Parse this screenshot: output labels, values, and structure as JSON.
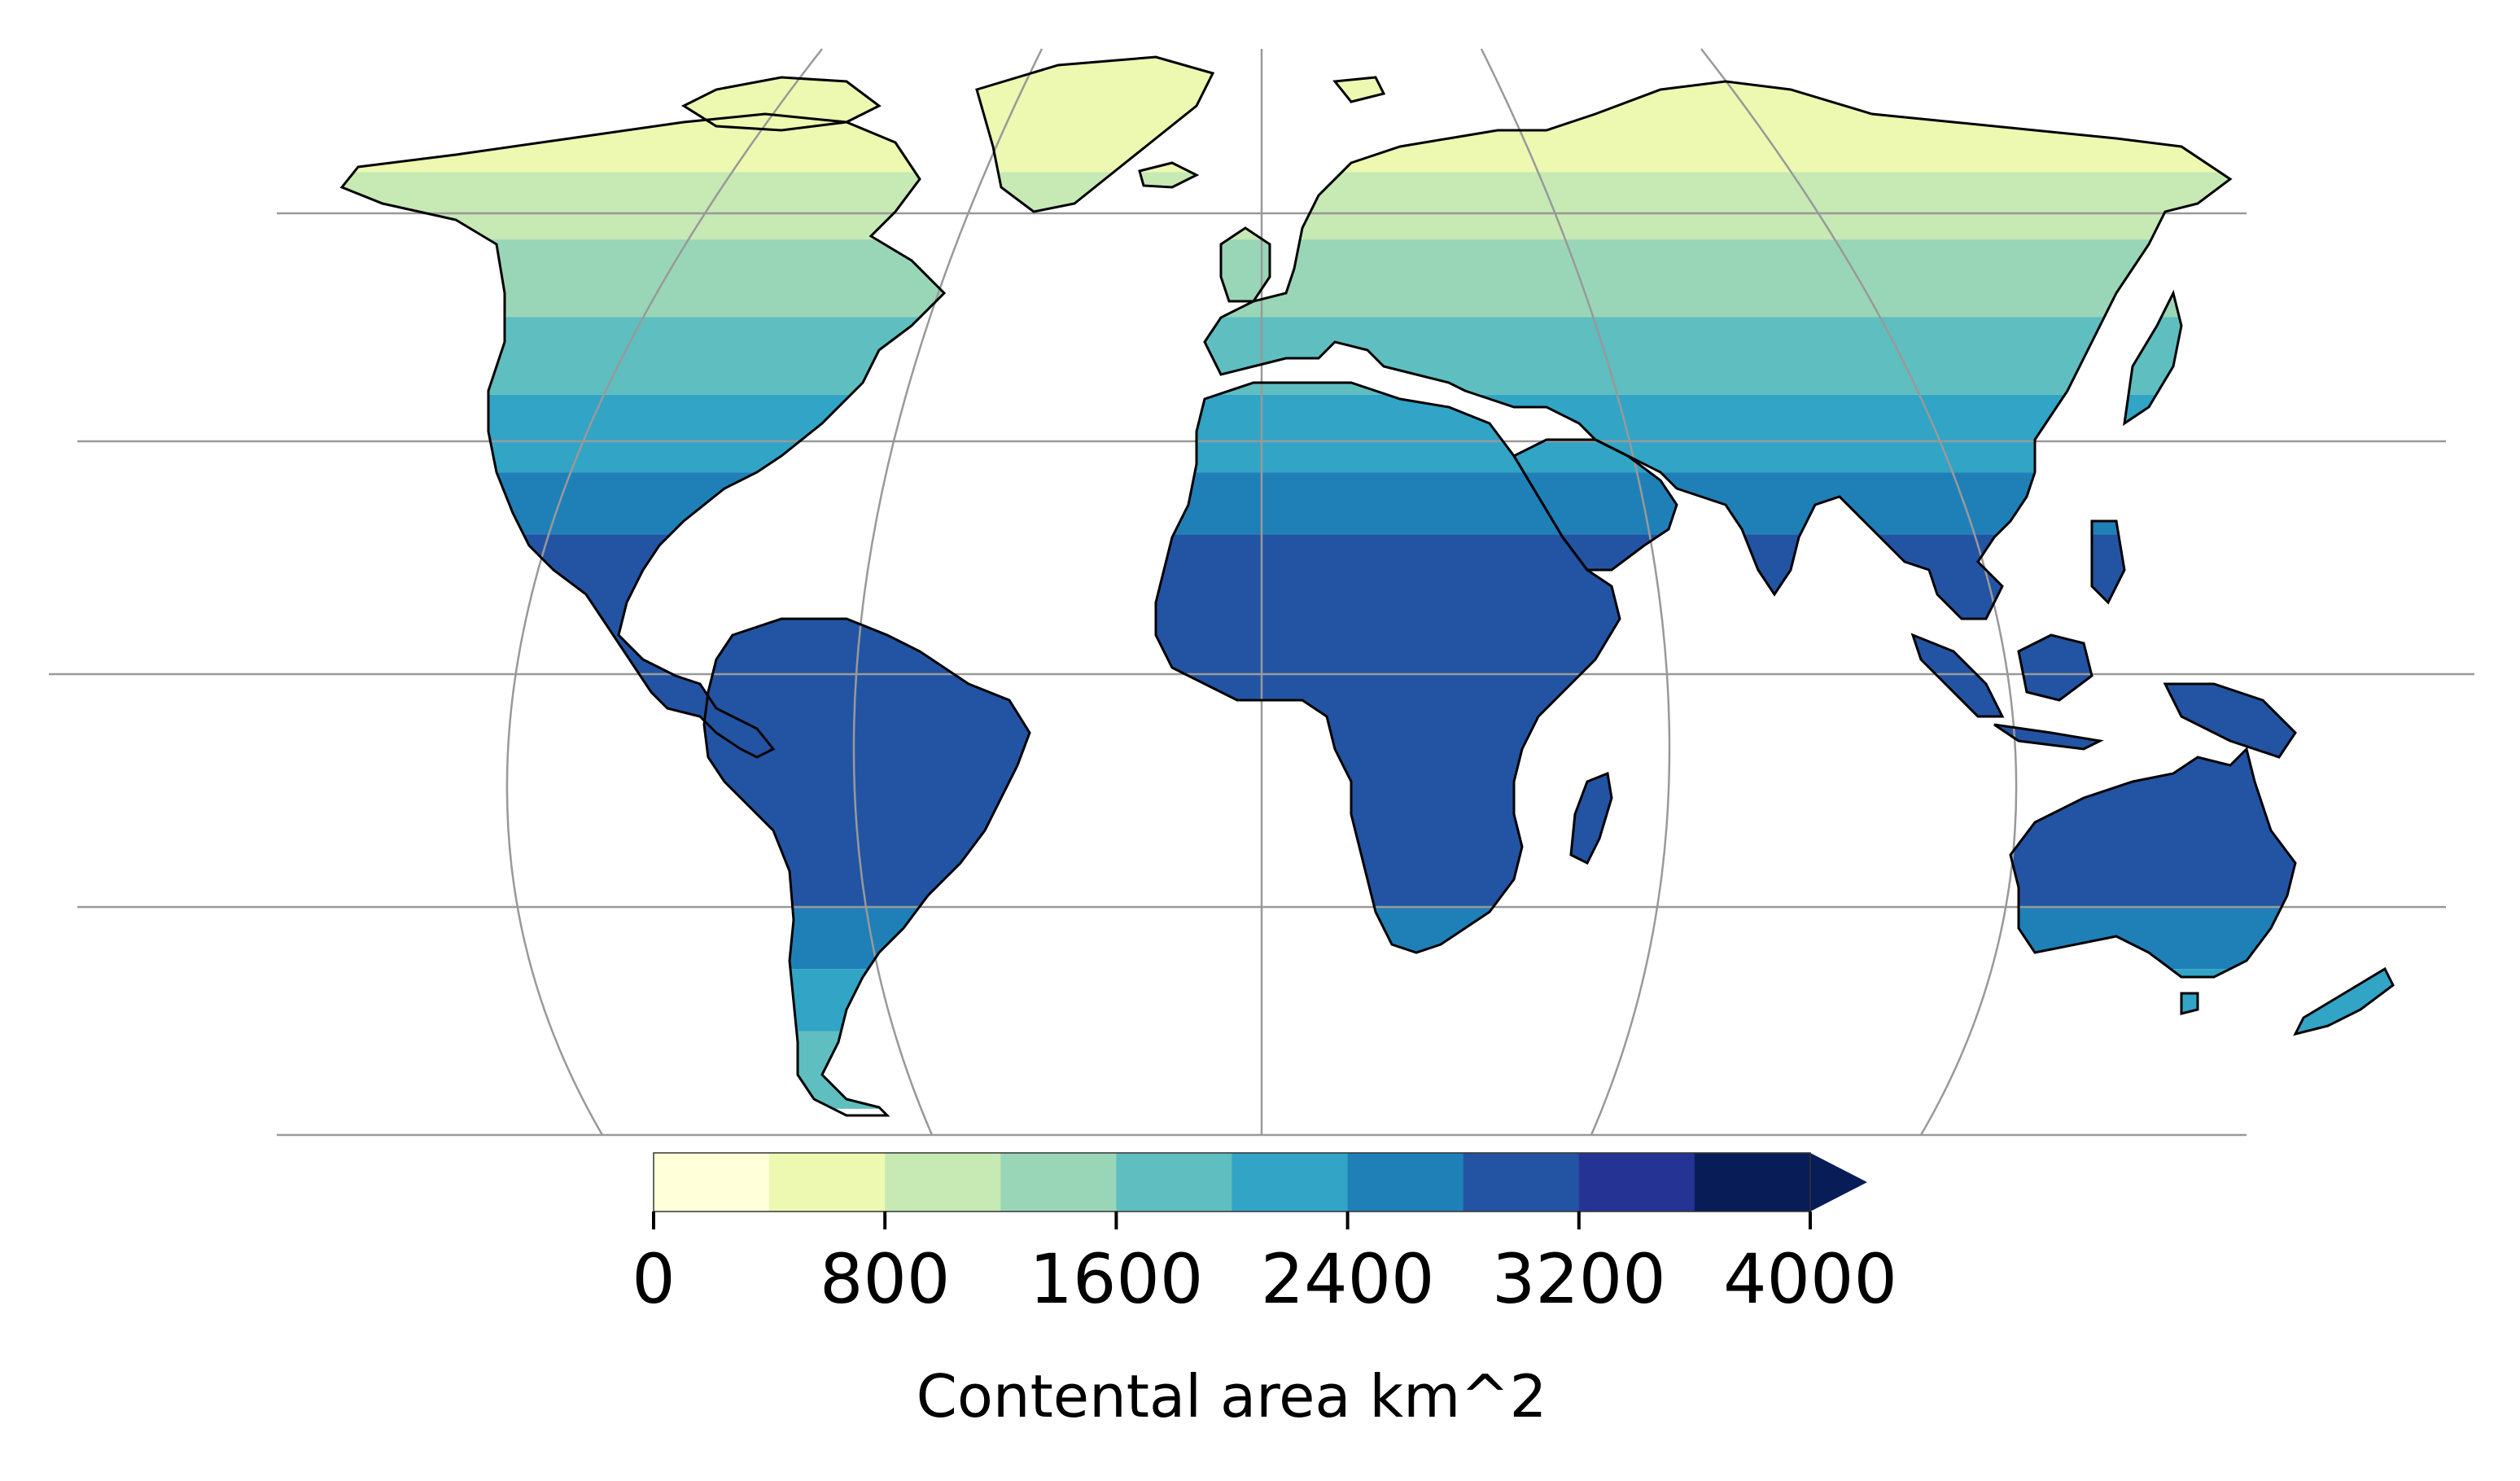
{
  "colorbar": {
    "label": "Contental area km^2",
    "ticks": [
      "0",
      "800",
      "1600",
      "2400",
      "3200",
      "4000"
    ],
    "bins": [
      "#ffffd9",
      "#edf8b1",
      "#c7e9b4",
      "#99d6b8",
      "#5fbec0",
      "#32a4c5",
      "#1f80b8",
      "#2354a3",
      "#253494",
      "#081d58"
    ],
    "extend": "max"
  },
  "latitude_bands": [
    {
      "lat_min": 66,
      "lat_max": 90,
      "color": "#edf8b1"
    },
    {
      "lat_min": 56,
      "lat_max": 66,
      "color": "#c7e9b4"
    },
    {
      "lat_min": 46,
      "lat_max": 56,
      "color": "#99d6b8"
    },
    {
      "lat_min": 36,
      "lat_max": 46,
      "color": "#5fbec0"
    },
    {
      "lat_min": 26,
      "lat_max": 36,
      "color": "#32a4c5"
    },
    {
      "lat_min": 18,
      "lat_max": 26,
      "color": "#1f80b8"
    },
    {
      "lat_min": -30,
      "lat_max": 18,
      "color": "#2354a3"
    },
    {
      "lat_min": -38,
      "lat_max": -30,
      "color": "#1f80b8"
    },
    {
      "lat_min": -46,
      "lat_max": -38,
      "color": "#32a4c5"
    },
    {
      "lat_min": -56,
      "lat_max": -46,
      "color": "#5fbec0"
    }
  ],
  "map": {
    "projection": "pseudocylindrical",
    "gridlines": true,
    "gridline_color": "#999999",
    "coastline_color": "#000000"
  }
}
